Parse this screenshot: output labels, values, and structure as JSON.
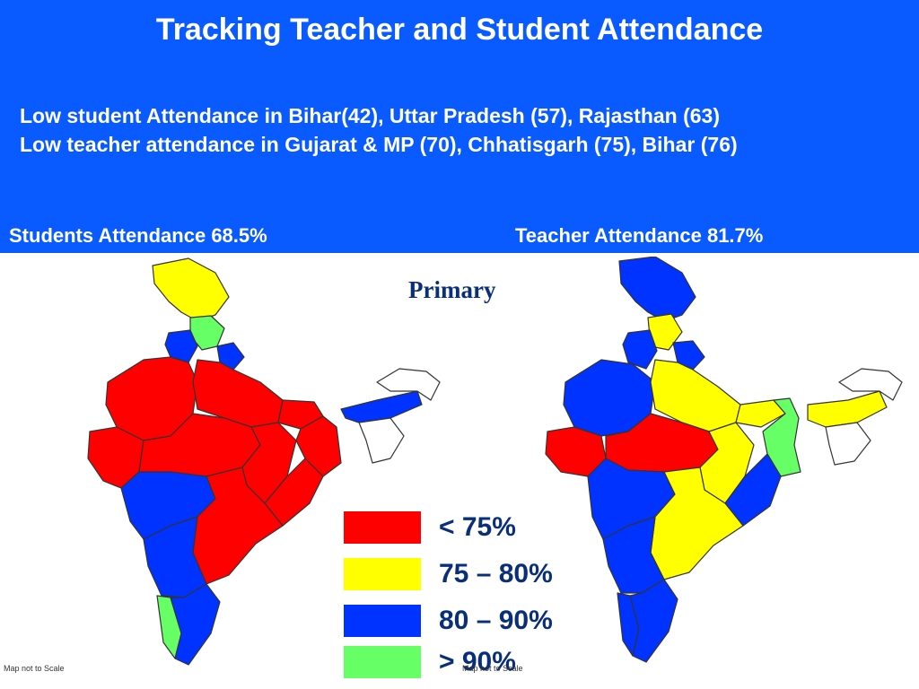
{
  "header": {
    "title": "Tracking Teacher and Student Attendance",
    "note_student": "Low student Attendance in Bihar(42),  Uttar Pradesh (57), Rajasthan (63)",
    "note_teacher": "Low teacher attendance in Gujarat & MP (70), Chhatisgarh (75), Bihar (76)",
    "students_attendance": "Students  Attendance   68.5%",
    "teacher_attendance": "Teacher Attendance    81.7%"
  },
  "level_label": "Primary",
  "legend": [
    {
      "label": "< 75%",
      "color": "#ff0000"
    },
    {
      "label": "75 – 80%",
      "color": "#ffff00"
    },
    {
      "label": "80 – 90%",
      "color": "#0033ff"
    },
    {
      "label": "> 90%",
      "color": "#66ff66"
    }
  ],
  "footnote_left": "Map not to Scale",
  "footnote_right": "Map not to Scale",
  "colors": {
    "banner": "#0a5bff",
    "outline": "#333333"
  }
}
